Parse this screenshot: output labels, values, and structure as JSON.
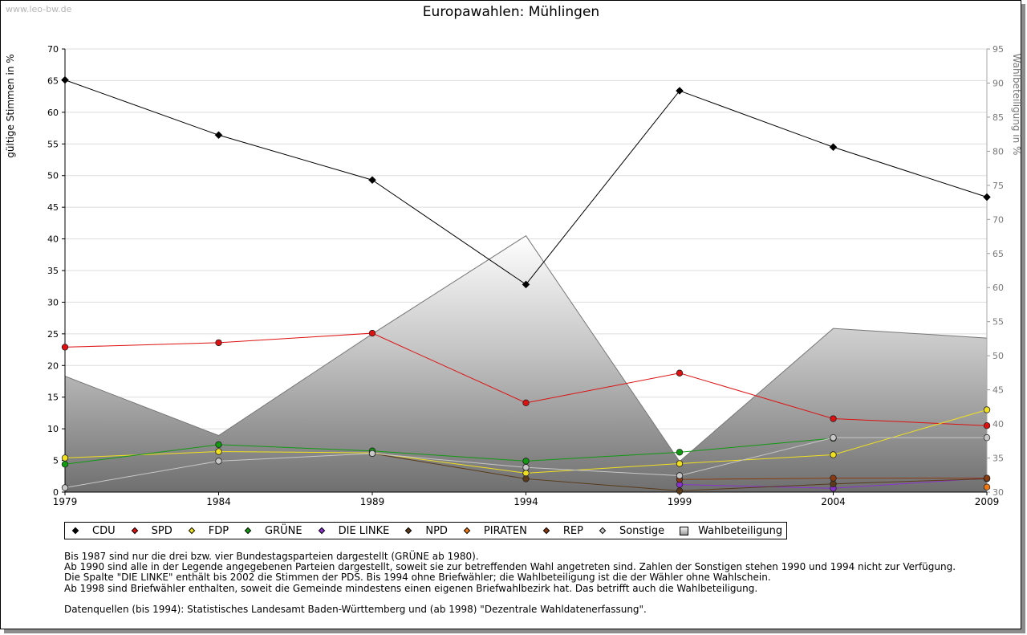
{
  "watermark": "www.leo-bw.de",
  "chart_data": {
    "type": "line",
    "title": "Europawahlen: Mühlingen",
    "ylabel": "gültige Stimmen in %",
    "y2label": "Wahlbeteiligung in %",
    "x": [
      1979,
      1984,
      1989,
      1994,
      1999,
      2004,
      2009
    ],
    "ylim": [
      0,
      70
    ],
    "y2lim": [
      30,
      95
    ],
    "yticks": [
      0,
      5,
      10,
      15,
      20,
      25,
      30,
      35,
      40,
      45,
      50,
      55,
      60,
      65,
      70
    ],
    "y2ticks": [
      30,
      35,
      40,
      45,
      50,
      55,
      60,
      65,
      70,
      75,
      80,
      85,
      90,
      95
    ],
    "grid": true,
    "legend_position": "bottom",
    "area_series": {
      "name": "Wahlbeteiligung",
      "axis": "right",
      "values": [
        47.0,
        38.3,
        53.2,
        67.6,
        34.5,
        54.0,
        52.6
      ]
    },
    "series": [
      {
        "name": "CDU",
        "color": "#000000",
        "values": [
          65.1,
          56.4,
          49.3,
          32.8,
          63.4,
          54.5,
          46.6
        ]
      },
      {
        "name": "SPD",
        "color": "#dd1111",
        "values": [
          22.9,
          23.6,
          25.1,
          14.1,
          18.8,
          11.6,
          10.5
        ]
      },
      {
        "name": "FDP",
        "color": "#f0e020",
        "values": [
          5.4,
          6.4,
          6.2,
          3.0,
          4.5,
          5.9,
          13.0
        ]
      },
      {
        "name": "GRÜNE",
        "color": "#119911",
        "values": [
          4.4,
          7.5,
          6.5,
          4.9,
          6.3,
          8.5,
          null
        ]
      },
      {
        "name": "DIE LINKE",
        "color": "#8833cc",
        "values": [
          null,
          null,
          null,
          null,
          1.2,
          0.6,
          2.2
        ]
      },
      {
        "name": "NPD",
        "color": "#5a3a1a",
        "values": [
          null,
          null,
          6.1,
          2.1,
          0.2,
          1.3,
          2.1
        ]
      },
      {
        "name": "PIRATEN",
        "color": "#ee7711",
        "values": [
          null,
          null,
          null,
          null,
          null,
          null,
          0.8
        ]
      },
      {
        "name": "REP",
        "color": "#8a3a10",
        "values": [
          null,
          null,
          null,
          null,
          2.0,
          2.2,
          2.2
        ]
      },
      {
        "name": "Sonstige",
        "color": "#c8c8c8",
        "values": [
          0.7,
          4.9,
          6.1,
          3.9,
          2.6,
          8.6,
          8.6
        ]
      }
    ]
  },
  "legend": [
    {
      "label": "CDU",
      "color": "#000000"
    },
    {
      "label": "SPD",
      "color": "#dd1111"
    },
    {
      "label": "FDP",
      "color": "#f0e020"
    },
    {
      "label": "GRÜNE",
      "color": "#119911"
    },
    {
      "label": "DIE LINKE",
      "color": "#8833cc"
    },
    {
      "label": "NPD",
      "color": "#5a3a1a"
    },
    {
      "label": "PIRATEN",
      "color": "#ee7711"
    },
    {
      "label": "REP",
      "color": "#8a3a10"
    },
    {
      "label": "Sonstige",
      "color": "#c8c8c8"
    },
    {
      "label": "Wahlbeteiligung",
      "color": "#aaaaaa"
    }
  ],
  "notes": [
    "Bis 1987 sind nur die drei bzw. vier Bundestagsparteien dargestellt (GRÜNE ab 1980).",
    "Ab 1990 sind alle in der Legende angegebenen Parteien dargestellt, soweit sie zur betreffenden Wahl angetreten sind. Zahlen der Sonstigen stehen 1990 und 1994 nicht zur Verfügung.",
    "Die Spalte \"DIE LINKE\" enthält bis 2002 die Stimmen der PDS. Bis 1994 ohne Briefwähler; die Wahlbeteiligung ist die der Wähler ohne Wahlschein.",
    "Ab 1998 sind Briefwähler enthalten, soweit die Gemeinde mindestens einen eigenen Briefwahlbezirk hat. Das betrifft auch die Wahlbeteiligung."
  ],
  "source": "Datenquellen (bis 1994): Statistisches Landesamt Baden-Württemberg und (ab 1998) \"Dezentrale Wahldatenerfassung\"."
}
